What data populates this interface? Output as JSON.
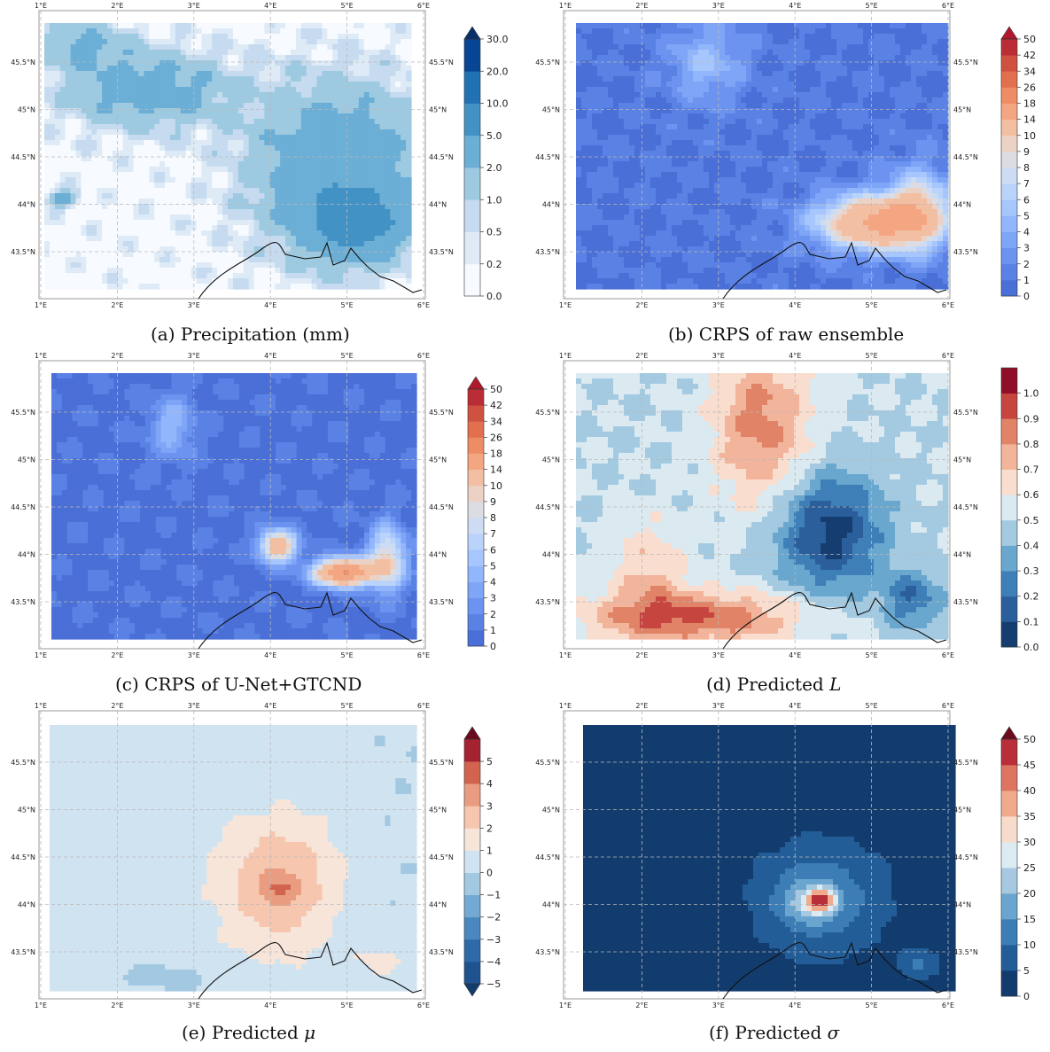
{
  "figure": {
    "panels": [
      {
        "id": "a",
        "caption": {
          "letter": "(a)",
          "title": "Precipitation (mm)",
          "symbol": ""
        },
        "map_field": "precipitation",
        "colorbar": {
          "labels": [
            "0.0",
            "0.2",
            "0.5",
            "1.0",
            "2.0",
            "5.0",
            "10.0",
            "20.0",
            "30.0"
          ],
          "colors": [
            "#f7fbff",
            "#deebf7",
            "#c6dbef",
            "#9ecae1",
            "#6baed6",
            "#4292c6",
            "#2171b5",
            "#084594"
          ],
          "extend_top": true,
          "extend_bottom": false,
          "top_cap_color": "#08306b"
        }
      },
      {
        "id": "b",
        "caption": {
          "letter": "(b)",
          "title": "CRPS of raw ensemble",
          "symbol": ""
        },
        "map_field": "crps_raw",
        "colorbar": {
          "labels": [
            "0",
            "1",
            "2",
            "3",
            "4",
            "5",
            "6",
            "7",
            "8",
            "9",
            "10",
            "14",
            "18",
            "26",
            "34",
            "42",
            "50"
          ],
          "colors": [
            "#4a6fd6",
            "#5a82e4",
            "#6b93ef",
            "#7ea5f6",
            "#92b6fb",
            "#a6c6fd",
            "#bad3fb",
            "#cddcf2",
            "#dcdde3",
            "#ecd2c4",
            "#f3bfa3",
            "#f4a683",
            "#ee8c66",
            "#e2704f",
            "#cf5140",
            "#bb2d36"
          ],
          "extend_top": true,
          "extend_bottom": false,
          "top_cap_color": "#b2182b"
        }
      },
      {
        "id": "c",
        "caption": {
          "letter": "(c)",
          "title": "CRPS of U-Net+GTCND",
          "symbol": ""
        },
        "map_field": "crps_unet",
        "colorbar": {
          "labels": [
            "0",
            "1",
            "2",
            "3",
            "4",
            "5",
            "6",
            "7",
            "8",
            "9",
            "10",
            "14",
            "18",
            "26",
            "34",
            "42",
            "50"
          ],
          "colors": [
            "#4a6fd6",
            "#5a82e4",
            "#6b93ef",
            "#7ea5f6",
            "#92b6fb",
            "#a6c6fd",
            "#bad3fb",
            "#cddcf2",
            "#dcdde3",
            "#ecd2c4",
            "#f3bfa3",
            "#f4a683",
            "#ee8c66",
            "#e2704f",
            "#cf5140",
            "#bb2d36"
          ],
          "extend_top": true,
          "extend_bottom": false,
          "top_cap_color": "#b2182b"
        }
      },
      {
        "id": "d",
        "caption": {
          "letter": "(d)",
          "title": "Predicted",
          "symbol": "L"
        },
        "map_field": "pred_L",
        "colorbar": {
          "labels": [
            "0.0",
            "0.1",
            "0.2",
            "0.3",
            "0.4",
            "0.5",
            "0.6",
            "0.7",
            "0.8",
            "0.9",
            "1.0"
          ],
          "colors": [
            "#153d70",
            "#2a5f9b",
            "#3f7fb8",
            "#6aa7cf",
            "#a4cae1",
            "#dbe9f1",
            "#f9ddce",
            "#f2b49a",
            "#e08366",
            "#c6463f",
            "#8e0f27"
          ],
          "extend_top": false,
          "extend_bottom": false,
          "top_cap_color": ""
        }
      },
      {
        "id": "e",
        "caption": {
          "letter": "(e)",
          "title": "Predicted",
          "symbol": "μ"
        },
        "map_field": "pred_mu",
        "colorbar": {
          "labels": [
            "−5",
            "−4",
            "−3",
            "−2",
            "−1",
            "0",
            "1",
            "2",
            "3",
            "4",
            "5"
          ],
          "colors": [
            "#1f5390",
            "#2e6aa8",
            "#4a87bf",
            "#73a9d2",
            "#a2c8e2",
            "#d0e3f0",
            "#f7e5da",
            "#f6c6ae",
            "#ea9c80",
            "#d2644f",
            "#a52233"
          ],
          "extend_top": true,
          "extend_bottom": true,
          "top_cap_color": "#6b0c1e",
          "bottom_cap_color": "#123c6e"
        }
      },
      {
        "id": "f",
        "caption": {
          "letter": "(f)",
          "title": "Predicted",
          "symbol": "σ"
        },
        "map_field": "pred_sigma",
        "colorbar": {
          "labels": [
            "0",
            "5",
            "10",
            "15",
            "20",
            "25",
            "30",
            "35",
            "40",
            "45",
            "50"
          ],
          "colors": [
            "#123c6e",
            "#235d97",
            "#3c7db6",
            "#6aa5cf",
            "#a6c9e1",
            "#dcebf2",
            "#f8dccb",
            "#f0aa8c",
            "#dd7561",
            "#b82f3a"
          ],
          "extend_top": true,
          "extend_bottom": false,
          "top_cap_color": "#6b0c1e"
        }
      }
    ],
    "map_axes": {
      "lon_labels": [
        "1°E",
        "2°E",
        "3°E",
        "4°E",
        "5°E",
        "6°E"
      ],
      "lat_labels": [
        "45.5°N",
        "45°N",
        "44.5°N",
        "44°N",
        "43.5°N"
      ]
    }
  }
}
